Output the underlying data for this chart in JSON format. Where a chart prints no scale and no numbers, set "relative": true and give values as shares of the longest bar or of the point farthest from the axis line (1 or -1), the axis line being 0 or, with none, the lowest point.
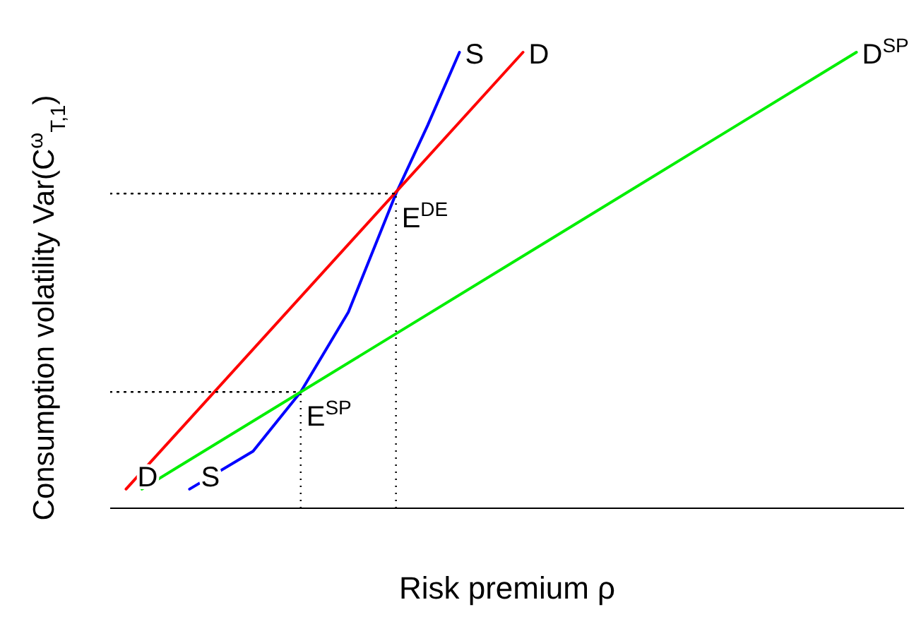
{
  "chart_data": {
    "type": "line",
    "relative": true,
    "xlabel": "Risk premium ρ",
    "ylabel": "Consumption volatility Var(C$^{ω}$$_{T,1}$)",
    "categories": [
      null,
      null,
      null,
      null,
      null,
      null,
      null,
      null,
      null,
      null,
      null,
      null,
      null,
      null,
      null,
      null,
      null,
      null,
      null,
      null,
      null,
      null,
      null,
      null,
      null,
      null,
      null,
      null,
      null,
      null,
      null,
      null,
      null,
      null,
      null,
      null,
      null,
      null,
      null,
      null,
      null,
      null,
      null,
      null,
      null,
      null,
      null,
      null,
      null,
      null,
      null
    ],
    "marker": "none",
    "line_style": "solid",
    "series": [
      {
        "name": "S",
        "color": "#0000ff",
        "values": [
          null,
          null,
          null,
          null,
          null,
          0.042,
          null,
          null,
          null,
          0.125,
          null,
          null,
          0.255,
          null,
          null,
          0.43,
          null,
          null,
          0.69,
          null,
          0.84,
          null,
          1,
          null,
          null,
          null,
          null,
          null,
          null,
          null,
          null,
          null,
          null,
          null,
          null,
          null,
          null,
          null,
          null,
          null,
          null,
          null,
          null,
          null,
          null,
          null,
          null,
          null,
          null,
          null,
          null
        ]
      },
      {
        "name": "D",
        "color": "#ff0000",
        "values": [
          null,
          0.042,
          null,
          null,
          null,
          null,
          null,
          null,
          null,
          null,
          null,
          null,
          null,
          null,
          null,
          null,
          null,
          null,
          null,
          null,
          null,
          null,
          null,
          null,
          null,
          null,
          1,
          null,
          null,
          null,
          null,
          null,
          null,
          null,
          null,
          null,
          null,
          null,
          null,
          null,
          null,
          null,
          null,
          null,
          null,
          null,
          null,
          null,
          null,
          null,
          null
        ]
      },
      {
        "name": "D$^{SP}$",
        "color": "#00ee00",
        "values": [
          null,
          null,
          0.042,
          null,
          null,
          null,
          null,
          null,
          null,
          null,
          null,
          null,
          null,
          null,
          null,
          null,
          null,
          null,
          null,
          null,
          null,
          null,
          null,
          null,
          null,
          null,
          null,
          null,
          null,
          null,
          null,
          null,
          null,
          null,
          null,
          null,
          null,
          null,
          null,
          null,
          null,
          null,
          null,
          null,
          null,
          null,
          null,
          1,
          null,
          null,
          null
        ]
      },
      {
        "name": "E$^{DE}$",
        "color": "#000000",
        "line_style": "dotted",
        "values": [
          0.69,
          0.69,
          0.69,
          0.69,
          0.69,
          0.69,
          0.69,
          0.69,
          0.69,
          0.69,
          0.69,
          0.69,
          0.69,
          0.69,
          0.69,
          0.69,
          0.69,
          0.69,
          0.69,
          null,
          null,
          null,
          null,
          null,
          null,
          null,
          null,
          null,
          null,
          null,
          null,
          null,
          null,
          null,
          null,
          null,
          null,
          null,
          null,
          null,
          null,
          null,
          null,
          null,
          null,
          null,
          null,
          null,
          null,
          null,
          null
        ]
      },
      {
        "name": "E$^{SP}$",
        "color": "#000000",
        "line_style": "dotted",
        "values": [
          0.255,
          0.255,
          0.255,
          0.255,
          0.255,
          0.255,
          0.255,
          0.255,
          0.255,
          0.255,
          0.255,
          0.255,
          0.255,
          null,
          null,
          null,
          null,
          null,
          null,
          null,
          null,
          null,
          null,
          null,
          null,
          null,
          null,
          null,
          null,
          null,
          null,
          null,
          null,
          null,
          null,
          null,
          null,
          null,
          null,
          null,
          null,
          null,
          null,
          null,
          null,
          null,
          null,
          null,
          null,
          null,
          null
        ]
      }
    ],
    "annotations": [
      "S",
      "D"
    ]
  }
}
